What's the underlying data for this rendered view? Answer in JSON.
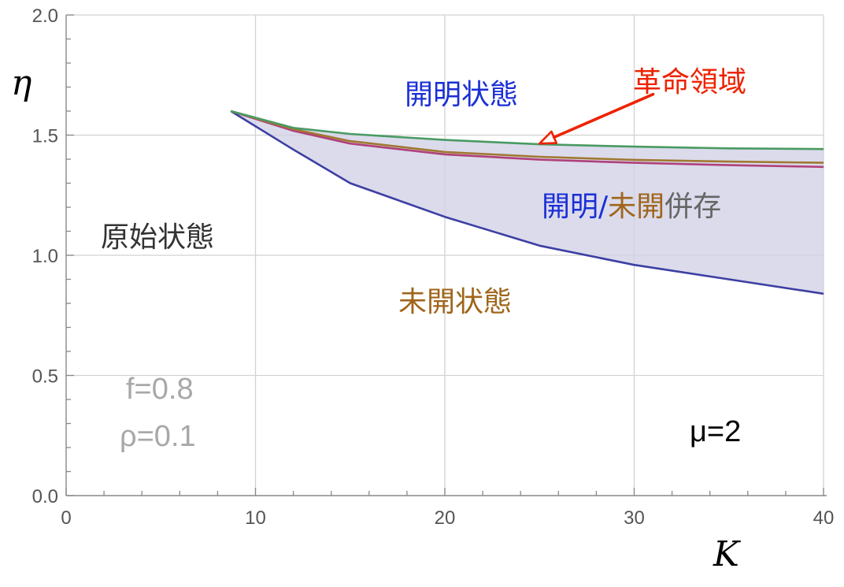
{
  "chart_data": {
    "type": "line",
    "xlabel": "K",
    "ylabel": "η",
    "xlim": [
      0,
      40
    ],
    "ylim": [
      0,
      2
    ],
    "x_ticks": [
      0,
      10,
      20,
      30,
      40
    ],
    "y_ticks": [
      0.0,
      0.5,
      1.0,
      1.5,
      2.0
    ],
    "x_tick_labels": [
      "0",
      "10",
      "20",
      "30",
      "40"
    ],
    "y_tick_labels": [
      "0.0",
      "0.5",
      "1.0",
      "1.5",
      "2.0"
    ],
    "grid": true,
    "series": [
      {
        "color": "#4a9a62",
        "x": [
          8.7,
          12,
          15,
          20,
          25,
          30,
          35,
          40
        ],
        "y": [
          1.6,
          1.53,
          1.505,
          1.48,
          1.462,
          1.452,
          1.445,
          1.442
        ]
      },
      {
        "color": "#a07830",
        "x": [
          8.7,
          12,
          15,
          20,
          25,
          30,
          35,
          40
        ],
        "y": [
          1.6,
          1.525,
          1.475,
          1.43,
          1.41,
          1.397,
          1.39,
          1.385
        ]
      },
      {
        "color": "#b0407a",
        "x": [
          8.7,
          12,
          15,
          20,
          25,
          30,
          35,
          40
        ],
        "y": [
          1.6,
          1.518,
          1.465,
          1.42,
          1.398,
          1.385,
          1.375,
          1.368
        ]
      },
      {
        "color": "#3d3fa3",
        "x": [
          8.7,
          12,
          15,
          20,
          25,
          30,
          35,
          40
        ],
        "y": [
          1.6,
          1.44,
          1.3,
          1.16,
          1.04,
          0.96,
          0.9,
          0.84
        ]
      }
    ],
    "shaded_region": {
      "fill": "#cfcfe6",
      "upper_series": 0,
      "lower_series": 3
    },
    "arrow": {
      "color": "#ee2200",
      "from": [
        31,
        1.67
      ],
      "to": [
        25,
        1.465
      ]
    }
  },
  "labels": {
    "region_open": "開明状態",
    "region_open_color": "#1a2fd6",
    "revolution": "革命領域",
    "revolution_color": "#ee2200",
    "coexist_a": "開明",
    "coexist_slash": "/",
    "coexist_b": "未開",
    "coexist_c": "併存",
    "coexist_c_color": "#666666",
    "primitive": "原始状態",
    "primitive_color": "#333333",
    "undeveloped": "未開状態",
    "undeveloped_color": "#a0651a",
    "param_f": "f=0.8",
    "param_rho": "ρ=0.1",
    "param_mu": "μ=2"
  }
}
